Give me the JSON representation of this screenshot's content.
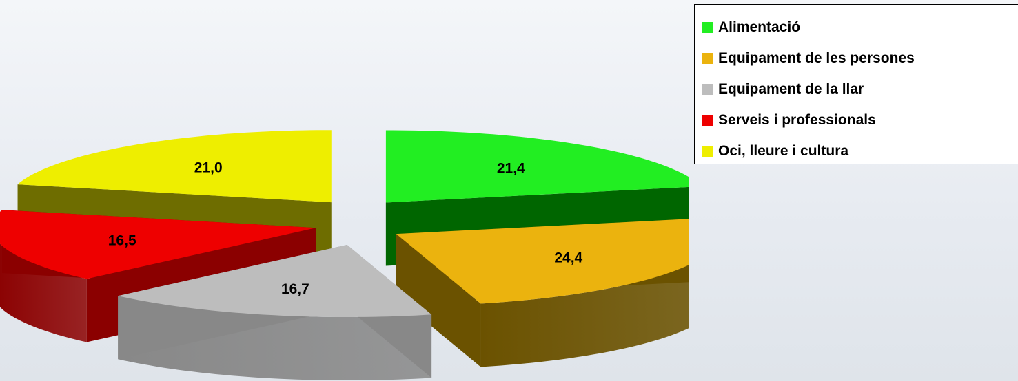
{
  "chart_data": {
    "type": "pie",
    "title": "",
    "style": "3d-exploded",
    "legend_position": "top-right",
    "unit": "%",
    "slices": [
      {
        "label": "Alimentació",
        "value": 21.4,
        "value_label": "21,4",
        "color": "#22ee22",
        "side_color": "#006600"
      },
      {
        "label": "Equipament de les persones",
        "value": 24.4,
        "value_label": "24,4",
        "color": "#ebb30e",
        "side_color": "#6b5200"
      },
      {
        "label": "Equipament de la llar",
        "value": 16.7,
        "value_label": "16,7",
        "color": "#bdbdbd",
        "side_color": "#888888"
      },
      {
        "label": "Serveis i professionals",
        "value": 16.5,
        "value_label": "16,5",
        "color": "#ee0000",
        "side_color": "#8b0000"
      },
      {
        "label": "Oci, lleure i cultura",
        "value": 21.0,
        "value_label": "21,0",
        "color": "#eeee00",
        "side_color": "#6e6d00"
      }
    ]
  }
}
